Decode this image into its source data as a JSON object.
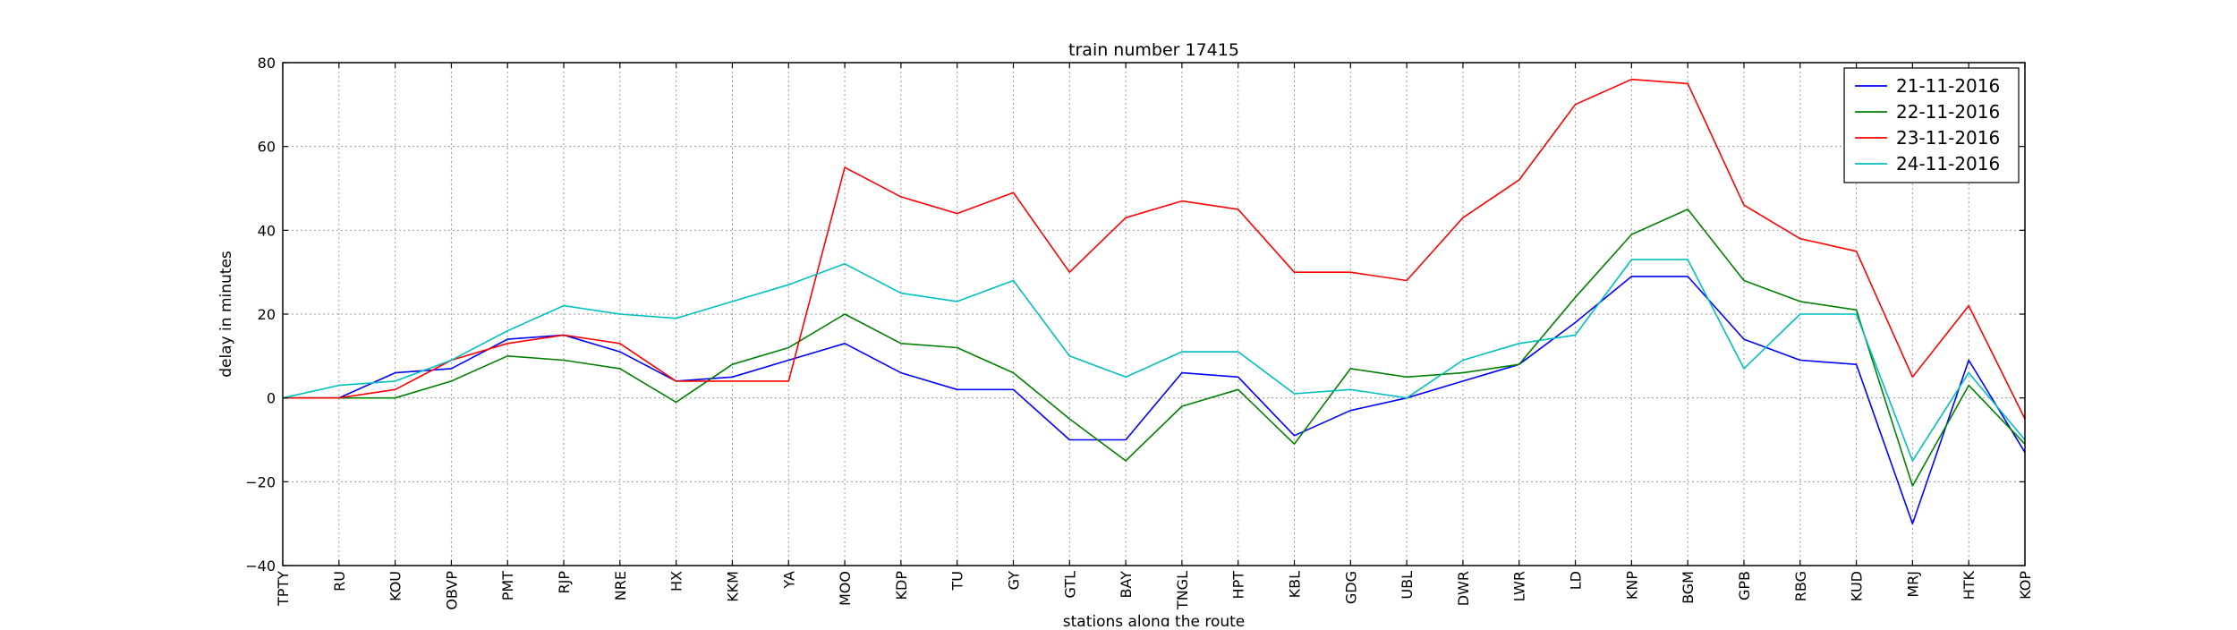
{
  "chart_data": {
    "type": "line",
    "title": "train number 17415",
    "xlabel": "stations along the route",
    "ylabel": "delay in minutes",
    "ylim": [
      -40,
      80
    ],
    "yticks": [
      -40,
      -20,
      0,
      20,
      40,
      60,
      80
    ],
    "ytick_labels": [
      "−40",
      "−20",
      "0",
      "20",
      "40",
      "60",
      "80"
    ],
    "grid": true,
    "legend_position": "top-right",
    "categories": [
      "TPTY",
      "RU",
      "KOU",
      "OBVP",
      "PMT",
      "RJP",
      "NRE",
      "HX",
      "KKM",
      "YA",
      "MOO",
      "KDP",
      "TU",
      "GY",
      "GTL",
      "BAY",
      "TNGL",
      "HPT",
      "KBL",
      "GDG",
      "UBL",
      "DWR",
      "LWR",
      "LD",
      "KNP",
      "BGM",
      "GPB",
      "RBG",
      "KUD",
      "MRJ",
      "HTK",
      "KOP"
    ],
    "series": [
      {
        "name": "21-11-2016",
        "color": "#0000ff",
        "values": [
          0,
          0,
          6,
          7,
          14,
          15,
          11,
          4,
          5,
          9,
          13,
          6,
          2,
          2,
          -10,
          -10,
          6,
          5,
          -9,
          -3,
          0,
          4,
          8,
          18,
          29,
          29,
          14,
          9,
          8,
          -30,
          9,
          -13
        ]
      },
      {
        "name": "22-11-2016",
        "color": "#008000",
        "values": [
          0,
          0,
          0,
          4,
          10,
          9,
          7,
          -1,
          8,
          12,
          20,
          13,
          12,
          6,
          -5,
          -15,
          -2,
          2,
          -11,
          7,
          5,
          6,
          8,
          24,
          39,
          45,
          28,
          23,
          21,
          -21,
          3,
          -11
        ]
      },
      {
        "name": "23-11-2016",
        "color": "#ff0000",
        "values": [
          0,
          0,
          2,
          9,
          13,
          15,
          13,
          4,
          4,
          4,
          55,
          48,
          44,
          49,
          30,
          43,
          47,
          45,
          30,
          30,
          28,
          43,
          52,
          70,
          76,
          75,
          46,
          38,
          35,
          5,
          22,
          -5
        ]
      },
      {
        "name": "24-11-2016",
        "color": "#00bfbf",
        "values": [
          0,
          3,
          4,
          9,
          16,
          22,
          20,
          19,
          23,
          27,
          32,
          25,
          23,
          28,
          10,
          5,
          11,
          11,
          1,
          2,
          0,
          9,
          13,
          15,
          33,
          33,
          7,
          20,
          20,
          -15,
          6,
          -10
        ]
      }
    ]
  }
}
